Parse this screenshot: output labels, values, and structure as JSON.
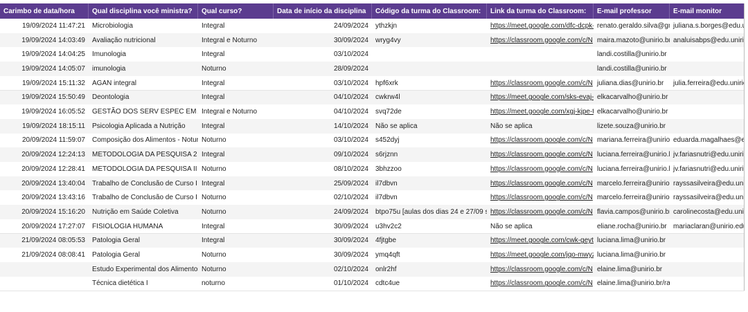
{
  "table": {
    "columns": [
      "Carimbo de data/hora",
      "Qual disciplina você ministra?",
      "Qual curso?",
      "Data de início da disciplina",
      "Código da turma do Classroom:",
      "Link da turma do Classroom:",
      "E-mail professor",
      "E-mail monitor"
    ],
    "rows": [
      [
        "19/09/2024 11:47:21",
        "Microbiologia",
        "Integral",
        "24/09/2024",
        "ythzkjn",
        "https://meet.google.com/dfc-dcpk-",
        "renato.geraldo.silva@gm",
        "juliana.s.borges@edu.uni"
      ],
      [
        "19/09/2024 14:03:49",
        "Avaliação nutricional",
        "Integral e Noturno",
        "30/09/2024",
        "wryg4vy",
        "https://classroom.google.com/c/N",
        "maira.mazoto@unirio.br",
        "analuisabps@edu.unirio."
      ],
      [
        "19/09/2024 14:04:25",
        "Imunologia",
        "Integral",
        "03/10/2024",
        null,
        null,
        "landi.costilla@unirio.br",
        null
      ],
      [
        "19/09/2024 14:05:07",
        "imunologia",
        "Noturno",
        "28/09/2024",
        null,
        null,
        "landi.costilla@unirio.br",
        null
      ],
      [
        "19/09/2024 15:11:32",
        "AGAN integral",
        "Integral",
        "03/10/2024",
        "hpf6xrk",
        "https://classroom.google.com/c/N",
        "juliana.dias@unirio.br",
        "julia.ferreira@edu.unirio."
      ],
      [
        "19/09/2024 15:50:49",
        "Deontologia",
        "Integral",
        "04/10/2024",
        "cwkrw4l",
        "https://meet.google.com/sks-evaj-",
        "elkacarvalho@unirio.br",
        null
      ],
      [
        "19/09/2024 16:05:52",
        "GESTÃO DOS SERV ESPEC EM ALIM",
        "Integral e Noturno",
        "04/10/2024",
        "svq72de",
        "https://meet.google.com/xgj-kjpe-t",
        "elkacarvalho@unirio.br",
        null
      ],
      [
        "19/09/2024 18:15:11",
        "Psicologia Aplicada a Nutrição",
        "Integral",
        "14/10/2024",
        "Não se aplica",
        "Não se aplica",
        "lizete.souza@unirio.br",
        null
      ],
      [
        "20/09/2024 11:59:07",
        "Composição dos Alimentos - Noturn",
        "Noturno",
        "03/10/2024",
        "s452dyj",
        "https://classroom.google.com/c/N",
        "mariana.ferreira@unirio.b",
        "eduarda.magalhaes@edu"
      ],
      [
        "20/09/2024 12:24:13",
        "METODOLOGIA DA PESQUISA 2",
        "Integral",
        "09/10/2024",
        "s6rjznn",
        "https://classroom.google.com/c/N",
        "luciana.ferreira@unirio.br",
        "jv.fariasnutri@edu.unirio."
      ],
      [
        "20/09/2024 12:28:41",
        "METODOLOGIA DA PESQUISA II",
        "Noturno",
        "08/10/2024",
        "3bhzzoo",
        "https://classroom.google.com/c/N",
        "luciana.ferreira@unirio.br",
        "jv.fariasnutri@edu.unirio."
      ],
      [
        "20/09/2024 13:40:04",
        "Trabalho de Conclusão de Curso I",
        "Integral",
        "25/09/2024",
        "il7dbvn",
        "https://classroom.google.com/c/N",
        "marcelo.ferreira@unirio.b",
        "rayssasilveira@edu.unirio."
      ],
      [
        "20/09/2024 13:43:16",
        "Trabalho de Conclusão de Curso I",
        "Noturno",
        "02/10/2024",
        "il7dbvn",
        "https://classroom.google.com/c/N",
        "marcelo.ferreira@unirio.b",
        "rayssasilveira@edu.unirio."
      ],
      [
        "20/09/2024 15:16:20",
        "Nutrição em Saúde Coletiva",
        "Noturno",
        "24/09/2024",
        "btpo75u  [aulas dos dias 24 e 27/09 se",
        "https://classroom.google.com/c/N",
        "flavia.campos@unirio.br",
        "carolinecosta@edu.unirio"
      ],
      [
        "20/09/2024 17:27:07",
        "FISIOLOGIA HUMANA",
        "Integral",
        "30/09/2024",
        "u3hv2c2",
        "Não se aplica",
        "eliane.rocha@unirio.br",
        "mariaclaran@unirio.edu."
      ],
      [
        "21/09/2024 08:05:53",
        "Patologia Geral",
        "Integral",
        "30/09/2024",
        "4fjtgbe",
        "https://meet.google.com/cwk-geyt",
        "luciana.lima@unirio.br",
        null
      ],
      [
        "21/09/2024 08:08:41",
        "Patologia Geral",
        "Noturno",
        "30/09/2024",
        "ymq4qft",
        "https://meet.google.com/jqo-mwyz",
        "luciana.lima@unirio.br",
        null
      ],
      [
        null,
        "Estudo Experimental dos Alimentos",
        "Noturno",
        "02/10/2024",
        "onlr2hf",
        "https://classroom.google.com/c/N",
        "elaine.lima@unirio.br",
        null
      ],
      [
        null,
        "Técnica dietética I",
        "noturno",
        "01/10/2024",
        "cdtc4ue",
        "https://classroom.google.com/c/N",
        "elaine.lima@unirio.br/raf",
        null
      ]
    ]
  }
}
